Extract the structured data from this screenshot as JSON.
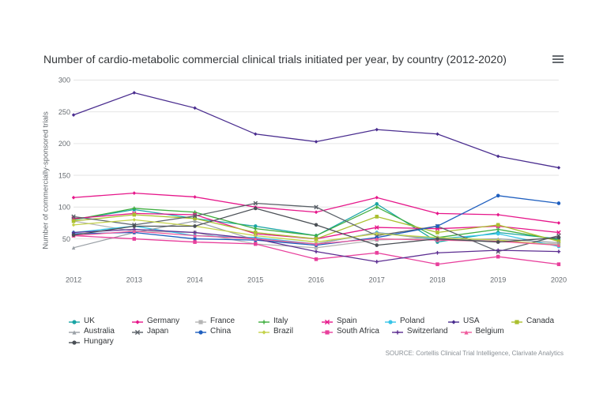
{
  "chart": {
    "type": "line",
    "title": "Number of cardio-metabolic commercial clinical trials initiated per year, by country (2012-2020)",
    "title_fontsize": 14,
    "title_color": "#333639",
    "background_color": "#ffffff",
    "grid_color": "#e6e6e6",
    "axis_text_color": "#666b70",
    "source_text": "SOURCE: Cortellis Clinical Trial Intelligence, Clarivate Analytics",
    "yaxis": {
      "title": "Number of commercially-sponsored trials",
      "min": 0,
      "max": 300,
      "tick_step": 50
    },
    "xaxis": {
      "categories": [
        "2012",
        "2013",
        "2014",
        "2015",
        "2016",
        "2017",
        "2018",
        "2019",
        "2020"
      ]
    },
    "line_width": 1.2,
    "marker_size": 2.2,
    "series": [
      {
        "name": "UK",
        "color": "#1aa5a5",
        "marker": "circle",
        "values": [
          80,
          96,
          82,
          70,
          55,
          105,
          45,
          60,
          50
        ]
      },
      {
        "name": "Germany",
        "color": "#e6168a",
        "marker": "diamond",
        "values": [
          115,
          122,
          116,
          100,
          92,
          115,
          90,
          88,
          75
        ]
      },
      {
        "name": "France",
        "color": "#b5b5b5",
        "marker": "square",
        "values": [
          78,
          62,
          60,
          42,
          36,
          48,
          52,
          46,
          42
        ]
      },
      {
        "name": "Italy",
        "color": "#3fae3f",
        "marker": "plus",
        "values": [
          80,
          98,
          92,
          66,
          55,
          100,
          52,
          65,
          48
        ]
      },
      {
        "name": "Spain",
        "color": "#e6168a",
        "marker": "cross",
        "values": [
          82,
          90,
          88,
          58,
          50,
          68,
          66,
          70,
          60
        ]
      },
      {
        "name": "Poland",
        "color": "#38c4e8",
        "marker": "circle",
        "values": [
          60,
          70,
          55,
          52,
          42,
          60,
          50,
          58,
          38
        ]
      },
      {
        "name": "USA",
        "color": "#4a2d8f",
        "marker": "diamond",
        "values": [
          245,
          280,
          256,
          215,
          203,
          222,
          215,
          180,
          162
        ]
      },
      {
        "name": "Canada",
        "color": "#aabf2e",
        "marker": "square",
        "values": [
          78,
          88,
          82,
          60,
          50,
          85,
          60,
          72,
          46
        ]
      },
      {
        "name": "Australia",
        "color": "#9aa0a6",
        "marker": "triangle",
        "values": [
          36,
          60,
          78,
          48,
          42,
          60,
          48,
          50,
          44
        ]
      },
      {
        "name": "Japan",
        "color": "#5a6168",
        "marker": "cross",
        "values": [
          85,
          72,
          86,
          106,
          100,
          55,
          70,
          30,
          55
        ]
      },
      {
        "name": "China",
        "color": "#1f5fbf",
        "marker": "circle",
        "values": [
          58,
          60,
          50,
          48,
          40,
          52,
          70,
          118,
          106
        ]
      },
      {
        "name": "Brazil",
        "color": "#c4d24a",
        "marker": "diamond",
        "values": [
          72,
          80,
          70,
          55,
          45,
          58,
          52,
          48,
          40
        ]
      },
      {
        "name": "South Africa",
        "color": "#e83f9c",
        "marker": "square",
        "values": [
          55,
          50,
          45,
          42,
          18,
          28,
          10,
          22,
          10
        ]
      },
      {
        "name": "Switzerland",
        "color": "#5c2d91",
        "marker": "plus",
        "values": [
          60,
          65,
          60,
          50,
          30,
          14,
          28,
          32,
          30
        ]
      },
      {
        "name": "Belgium",
        "color": "#f05a9c",
        "marker": "triangle",
        "values": [
          55,
          62,
          55,
          50,
          42,
          50,
          48,
          46,
          40
        ]
      },
      {
        "name": "Hungary",
        "color": "#4a4f55",
        "marker": "circle",
        "values": [
          56,
          70,
          70,
          98,
          72,
          40,
          50,
          45,
          52
        ]
      }
    ]
  }
}
